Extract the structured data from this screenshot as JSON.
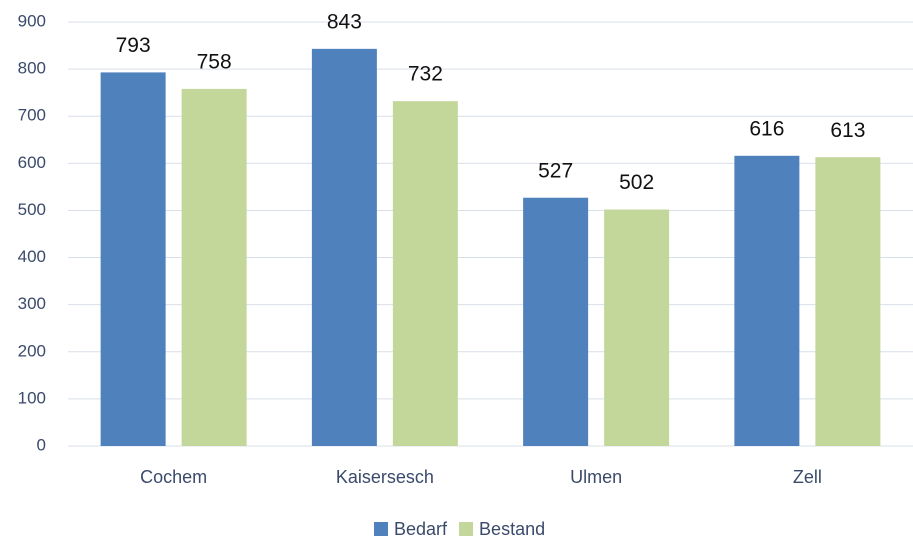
{
  "chart_data": {
    "type": "bar",
    "categories": [
      "Cochem",
      "Kaisersesch",
      "Ulmen",
      "Zell"
    ],
    "series": [
      {
        "name": "Bedarf",
        "color": "#4f81bd",
        "values": [
          793,
          843,
          527,
          616
        ]
      },
      {
        "name": "Bestand",
        "color": "#c4d79b",
        "values": [
          758,
          732,
          502,
          613
        ]
      }
    ],
    "ylim": [
      0,
      900
    ],
    "yticks": [
      0,
      100,
      200,
      300,
      400,
      500,
      600,
      700,
      800,
      900
    ],
    "grid": true,
    "legend": "bottom"
  }
}
